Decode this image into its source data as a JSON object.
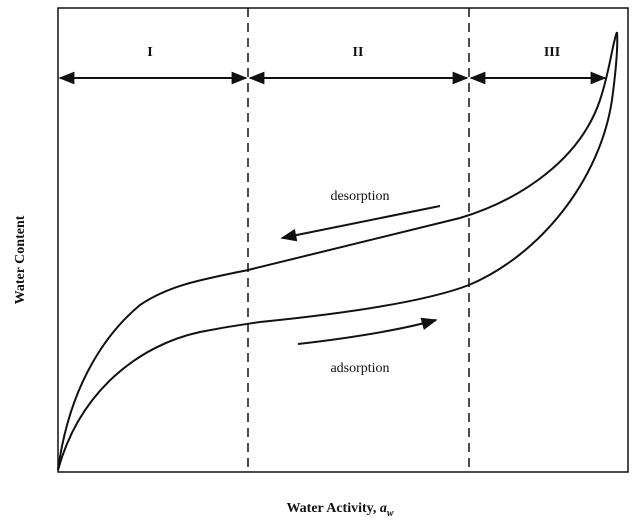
{
  "regions": [
    "I",
    "II",
    "III"
  ],
  "arrows": {
    "desorption": "desorption",
    "adsorption": "adsorption"
  },
  "y_label": "Water Content",
  "x_label": {
    "text": "Water Activity, ",
    "symbol": "a",
    "subscript": "w"
  }
}
